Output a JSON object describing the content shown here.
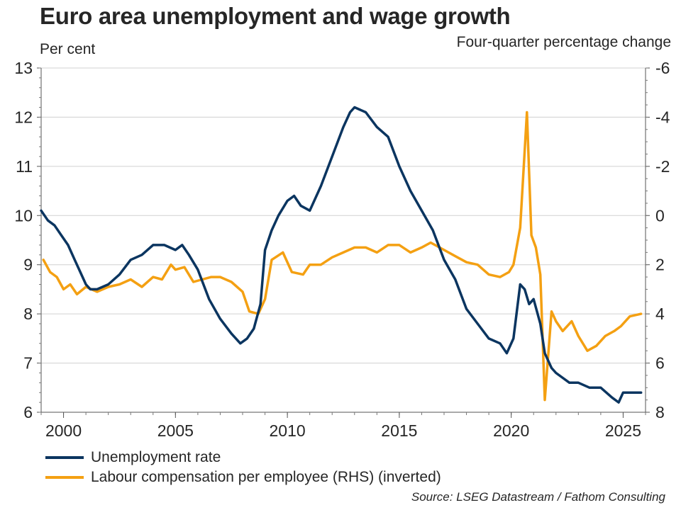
{
  "chart_data": {
    "type": "line",
    "title": "Euro area unemployment and wage growth",
    "ylabel_left": "Per cent",
    "ylabel_right": "Four-quarter percentage change",
    "source": "Source: LSEG Datastream / Fathom Consulting",
    "x_range": [
      1999,
      2026
    ],
    "x_ticks": [
      2000,
      2005,
      2010,
      2015,
      2020,
      2025
    ],
    "x_tick_labels": [
      "2000",
      "2005",
      "2010",
      "2015",
      "2020",
      "2025"
    ],
    "y_left_range": [
      6,
      13
    ],
    "y_left_ticks": [
      13,
      12,
      11,
      10,
      9,
      8,
      7,
      6
    ],
    "y_left_tick_labels": [
      "13",
      "12",
      "11",
      "10",
      "9",
      "8",
      "7",
      "6"
    ],
    "y_right_range": [
      -6,
      8
    ],
    "y_right_inverted": true,
    "y_right_ticks": [
      -6,
      -4,
      -2,
      0,
      2,
      4,
      6,
      8
    ],
    "y_right_tick_labels": [
      "-6",
      "-4",
      "-2",
      "0",
      "2",
      "4",
      "6",
      "8"
    ],
    "grid": true,
    "legend_position": "bottom-left",
    "series": [
      {
        "name": "Unemployment rate",
        "axis": "left",
        "color": "#0b3560",
        "x": [
          1999.0,
          1999.3,
          1999.6,
          1999.9,
          2000.2,
          2000.5,
          2000.8,
          2001.0,
          2001.2,
          2001.5,
          2002.0,
          2002.5,
          2003.0,
          2003.5,
          2004.0,
          2004.5,
          2005.0,
          2005.3,
          2005.6,
          2006.0,
          2006.5,
          2007.0,
          2007.5,
          2007.9,
          2008.2,
          2008.5,
          2008.8,
          2009.0,
          2009.3,
          2009.6,
          2010.0,
          2010.3,
          2010.6,
          2011.0,
          2011.5,
          2012.0,
          2012.5,
          2012.8,
          2013.0,
          2013.5,
          2014.0,
          2014.5,
          2015.0,
          2015.5,
          2016.0,
          2016.5,
          2017.0,
          2017.5,
          2018.0,
          2018.5,
          2019.0,
          2019.5,
          2019.8,
          2020.1,
          2020.4,
          2020.6,
          2020.8,
          2021.0,
          2021.3,
          2021.5,
          2021.8,
          2022.0,
          2022.3,
          2022.6,
          2023.0,
          2023.5,
          2024.0,
          2024.5,
          2024.8,
          2025.0,
          2025.3,
          2025.8
        ],
        "values": [
          10.1,
          9.9,
          9.8,
          9.6,
          9.4,
          9.1,
          8.8,
          8.6,
          8.5,
          8.5,
          8.6,
          8.8,
          9.1,
          9.2,
          9.4,
          9.4,
          9.3,
          9.4,
          9.2,
          8.9,
          8.3,
          7.9,
          7.6,
          7.4,
          7.5,
          7.7,
          8.2,
          9.3,
          9.7,
          10.0,
          10.3,
          10.4,
          10.2,
          10.1,
          10.6,
          11.2,
          11.8,
          12.1,
          12.2,
          12.1,
          11.8,
          11.6,
          11.0,
          10.5,
          10.1,
          9.7,
          9.1,
          8.7,
          8.1,
          7.8,
          7.5,
          7.4,
          7.2,
          7.5,
          8.6,
          8.5,
          8.2,
          8.3,
          7.8,
          7.2,
          6.9,
          6.8,
          6.7,
          6.6,
          6.6,
          6.5,
          6.5,
          6.3,
          6.2,
          6.4,
          6.4,
          6.4
        ]
      },
      {
        "name": "Labour compensation per employee (RHS) (inverted)",
        "axis": "right",
        "color": "#f4a012",
        "x": [
          1999.1,
          1999.4,
          1999.7,
          2000.0,
          2000.3,
          2000.6,
          2001.0,
          2001.5,
          2002.0,
          2002.5,
          2003.0,
          2003.5,
          2004.0,
          2004.4,
          2004.8,
          2005.0,
          2005.4,
          2005.8,
          2006.2,
          2006.6,
          2007.0,
          2007.5,
          2008.0,
          2008.3,
          2008.7,
          2009.0,
          2009.3,
          2009.8,
          2010.2,
          2010.7,
          2011.0,
          2011.5,
          2012.0,
          2012.5,
          2013.0,
          2013.5,
          2014.0,
          2014.5,
          2015.0,
          2015.5,
          2016.0,
          2016.4,
          2016.8,
          2017.2,
          2017.6,
          2018.0,
          2018.5,
          2019.0,
          2019.5,
          2019.9,
          2020.1,
          2020.4,
          2020.7,
          2020.9,
          2021.1,
          2021.3,
          2021.5,
          2021.8,
          2022.0,
          2022.3,
          2022.7,
          2023.0,
          2023.4,
          2023.8,
          2024.2,
          2024.6,
          2024.9,
          2025.3,
          2025.8
        ],
        "values": [
          1.8,
          2.3,
          2.5,
          3.0,
          2.8,
          3.2,
          2.9,
          3.1,
          2.9,
          2.8,
          2.6,
          2.9,
          2.5,
          2.6,
          2.0,
          2.2,
          2.1,
          2.7,
          2.6,
          2.5,
          2.5,
          2.7,
          3.1,
          3.9,
          4.0,
          3.4,
          1.8,
          1.5,
          2.3,
          2.4,
          2.0,
          2.0,
          1.7,
          1.5,
          1.3,
          1.3,
          1.5,
          1.2,
          1.2,
          1.5,
          1.3,
          1.1,
          1.3,
          1.5,
          1.7,
          1.9,
          2.0,
          2.4,
          2.5,
          2.3,
          2.0,
          0.5,
          -4.2,
          0.8,
          1.3,
          2.4,
          7.5,
          3.9,
          4.3,
          4.7,
          4.3,
          4.9,
          5.5,
          5.3,
          4.9,
          4.7,
          4.5,
          4.1,
          4.0
        ]
      }
    ]
  }
}
